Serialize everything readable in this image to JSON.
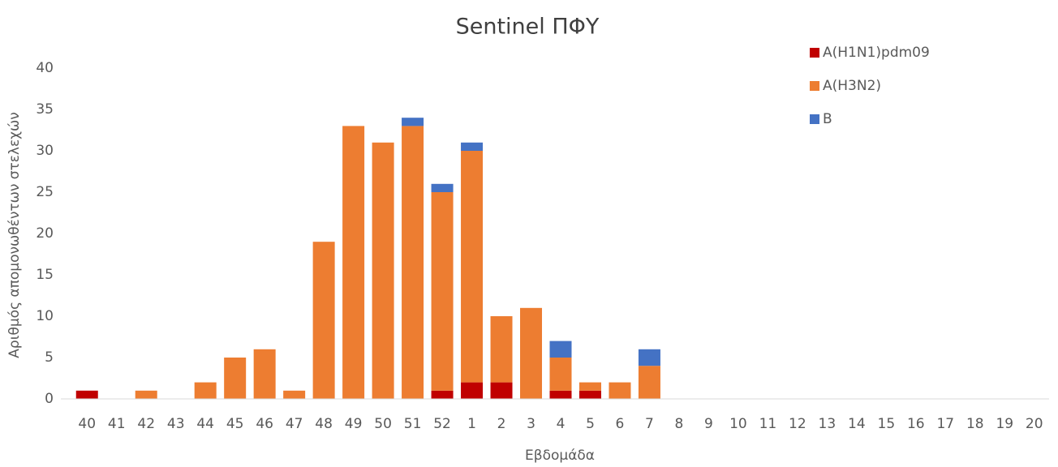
{
  "chart_data": {
    "type": "stacked-bar",
    "title": "Sentinel ΠΦΥ",
    "x_label": "Εβδομάδα",
    "y_label": "Αριθμός απομονωθέντων στελεχών",
    "categories": [
      "40",
      "41",
      "42",
      "43",
      "44",
      "45",
      "46",
      "47",
      "48",
      "49",
      "50",
      "51",
      "52",
      "1",
      "2",
      "3",
      "4",
      "5",
      "6",
      "7",
      "8",
      "9",
      "10",
      "11",
      "12",
      "13",
      "14",
      "15",
      "16",
      "17",
      "18",
      "19",
      "20"
    ],
    "series": [
      {
        "name": "A(H1N1)pdm09",
        "color": "#c00000",
        "values": [
          1,
          0,
          0,
          0,
          0,
          0,
          0,
          0,
          0,
          0,
          0,
          0,
          1,
          2,
          2,
          0,
          1,
          1,
          0,
          0,
          0,
          0,
          0,
          0,
          0,
          0,
          0,
          0,
          0,
          0,
          0,
          0,
          0
        ]
      },
      {
        "name": "A(H3N2)",
        "color": "#ed7d31",
        "values": [
          0,
          0,
          1,
          0,
          2,
          5,
          6,
          1,
          19,
          33,
          31,
          33,
          24,
          28,
          8,
          11,
          4,
          1,
          2,
          4,
          0,
          0,
          0,
          0,
          0,
          0,
          0,
          0,
          0,
          0,
          0,
          0,
          0
        ]
      },
      {
        "name": "B",
        "color": "#4472c4",
        "values": [
          0,
          0,
          0,
          0,
          0,
          0,
          0,
          0,
          0,
          0,
          0,
          1,
          1,
          1,
          0,
          0,
          2,
          0,
          0,
          2,
          0,
          0,
          0,
          0,
          0,
          0,
          0,
          0,
          0,
          0,
          0,
          0,
          0
        ]
      }
    ],
    "ylim": [
      0,
      40
    ],
    "yticks": [
      0,
      5,
      10,
      15,
      20,
      25,
      30,
      35,
      40
    ],
    "grid": false,
    "legend": "top-right"
  }
}
